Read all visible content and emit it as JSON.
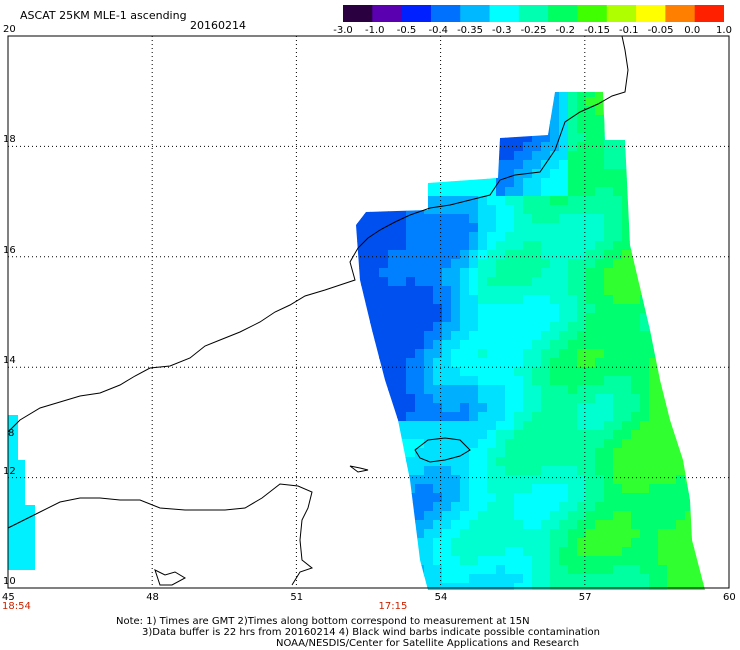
{
  "header": {
    "title": "ASCAT 25KM MLE-1 ascending",
    "date": "20160214"
  },
  "colorbar": {
    "labels": [
      "-3.0",
      "-1.0",
      "-0.5",
      "-0.4",
      "-0.35",
      "-0.3",
      "-0.25",
      "-0.2",
      "-0.15",
      "-0.1",
      "-0.05",
      "0.0",
      "1.0"
    ],
    "colors": [
      "#2a0040",
      "#5a00b0",
      "#0020ff",
      "#0070ff",
      "#00b8ff",
      "#00ffff",
      "#00ffb0",
      "#00ff60",
      "#40ff00",
      "#b0ff00",
      "#ffff00",
      "#ff8000",
      "#ff2000"
    ]
  },
  "axes": {
    "lon_ticks": [
      "45",
      "48",
      "51",
      "54",
      "57",
      "60"
    ],
    "lat_ticks": [
      "20",
      "18",
      "16",
      "14",
      "12",
      "10"
    ],
    "lat_partial": "8",
    "lon_range": [
      45,
      60
    ],
    "lat_range": [
      10,
      20
    ],
    "grid": "dotted"
  },
  "times": [
    {
      "label": "18:54",
      "lon": 45
    },
    {
      "label": "17:15",
      "lon": 53
    }
  ],
  "notes": [
    "Note: 1) Times are GMT 2)Times along bottom correspond to measurement at 15N",
    "3)Data buffer is 22 hrs from 20160214 4) Black wind barbs indicate possible contamination",
    "NOAA/NESDIS/Center for Satellite Applications and Research"
  ]
}
